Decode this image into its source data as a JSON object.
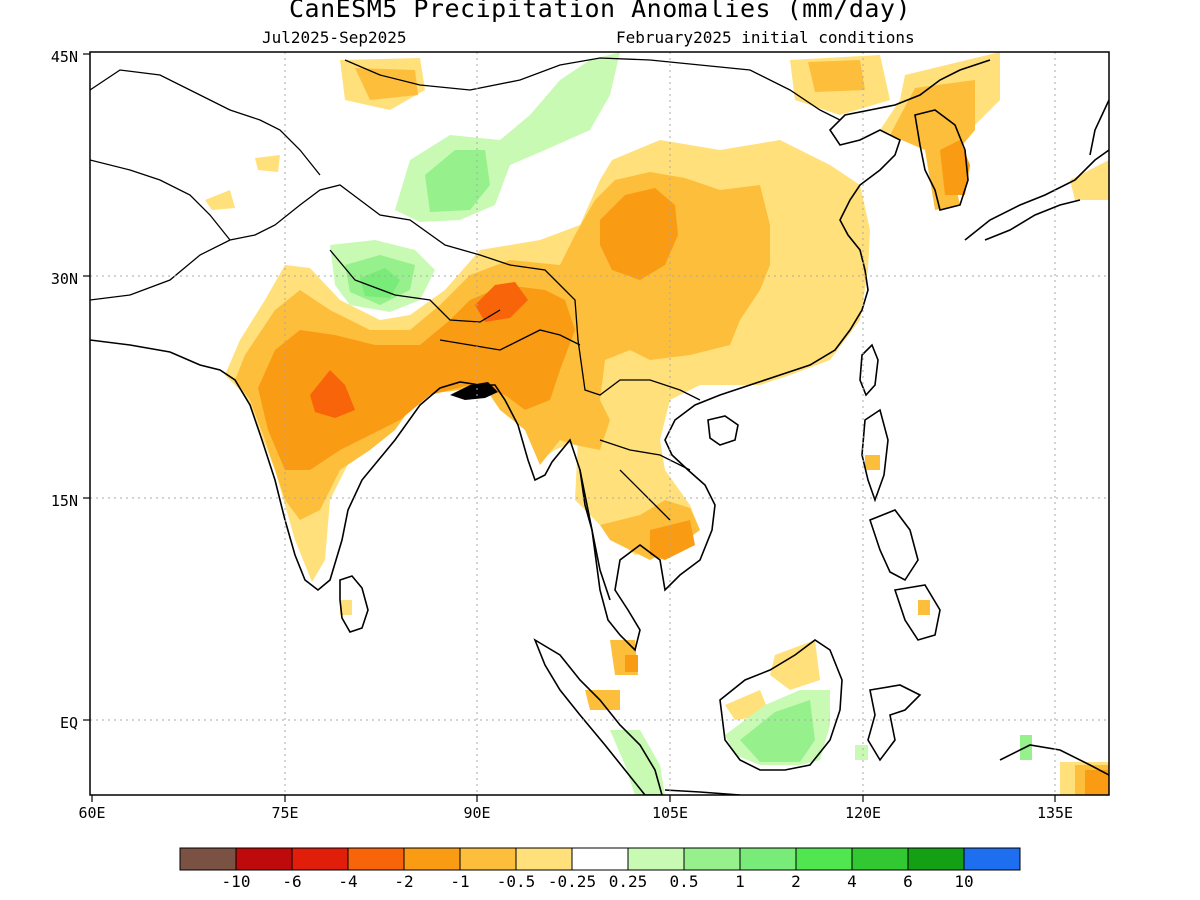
{
  "title": "CanESM5 Precipitation Anomalies (mm/day)",
  "period": "Jul2025-Sep2025",
  "init": "February2025 initial conditions",
  "lat_labels": [
    "45N",
    "30N",
    "15N",
    "EQ"
  ],
  "lon_labels": [
    "60E",
    "75E",
    "90E",
    "105E",
    "120E",
    "135E"
  ],
  "colorbar": {
    "colors": [
      "#7a5244",
      "#be0a0a",
      "#e11e0a",
      "#f8640a",
      "#fa9b14",
      "#fdbe3c",
      "#ffe07a",
      "#ffffff",
      "#c8fab4",
      "#96f08c",
      "#78eb78",
      "#50e650",
      "#32c832",
      "#14a014",
      "#1e6ef0"
    ],
    "labels": [
      "-10",
      "-6",
      "-4",
      "-2",
      "-1",
      "-0.5",
      "-0.25",
      "0.25",
      "0.5",
      "1",
      "2",
      "4",
      "6",
      "10"
    ]
  }
}
